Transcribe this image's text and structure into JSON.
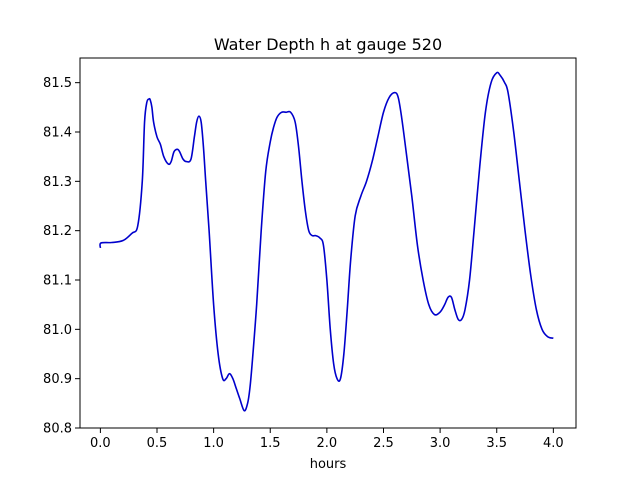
{
  "chart_data": {
    "type": "line",
    "title": "Water Depth h at gauge 520",
    "xlabel": "hours",
    "ylabel": "",
    "xlim": [
      -0.18,
      4.2
    ],
    "ylim": [
      80.8,
      81.55
    ],
    "xticks": [
      0.0,
      0.5,
      1.0,
      1.5,
      2.0,
      2.5,
      3.0,
      3.5,
      4.0
    ],
    "xtick_labels": [
      "0.0",
      "0.5",
      "1.0",
      "1.5",
      "2.0",
      "2.5",
      "3.0",
      "3.5",
      "4.0"
    ],
    "yticks": [
      80.8,
      80.9,
      81.0,
      81.1,
      81.2,
      81.3,
      81.4,
      81.5
    ],
    "ytick_labels": [
      "80.8",
      "80.9",
      "81.0",
      "81.1",
      "81.2",
      "81.3",
      "81.4",
      "81.5"
    ],
    "grid": false,
    "legend": "none",
    "series": [
      {
        "color": "#0000cc",
        "x": [
          0.0,
          0.005,
          0.1,
          0.2,
          0.28,
          0.33,
          0.37,
          0.39,
          0.41,
          0.43,
          0.44,
          0.455,
          0.47,
          0.5,
          0.53,
          0.56,
          0.6,
          0.625,
          0.65,
          0.68,
          0.7,
          0.73,
          0.76,
          0.8,
          0.83,
          0.85,
          0.87,
          0.89,
          0.91,
          0.93,
          0.96,
          1.0,
          1.04,
          1.08,
          1.11,
          1.14,
          1.17,
          1.2,
          1.23,
          1.27,
          1.3,
          1.32,
          1.34,
          1.38,
          1.42,
          1.46,
          1.5,
          1.53,
          1.56,
          1.6,
          1.64,
          1.68,
          1.72,
          1.75,
          1.78,
          1.81,
          1.84,
          1.87,
          1.9,
          1.94,
          1.97,
          2.0,
          2.03,
          2.06,
          2.09,
          2.12,
          2.15,
          2.18,
          2.21,
          2.25,
          2.3,
          2.35,
          2.4,
          2.45,
          2.5,
          2.55,
          2.6,
          2.63,
          2.66,
          2.7,
          2.75,
          2.8,
          2.85,
          2.9,
          2.95,
          3.0,
          3.04,
          3.07,
          3.1,
          3.13,
          3.16,
          3.19,
          3.22,
          3.26,
          3.3,
          3.35,
          3.4,
          3.45,
          3.5,
          3.53,
          3.57,
          3.6,
          3.65,
          3.7,
          3.75,
          3.8,
          3.85,
          3.9,
          3.95,
          4.0
        ],
        "y": [
          81.165,
          81.175,
          81.176,
          81.18,
          81.195,
          81.21,
          81.3,
          81.42,
          81.46,
          81.467,
          81.465,
          81.45,
          81.42,
          81.39,
          81.375,
          81.35,
          81.335,
          81.34,
          81.36,
          81.365,
          81.36,
          81.345,
          81.34,
          81.345,
          81.39,
          81.42,
          81.432,
          81.42,
          81.37,
          81.3,
          81.2,
          81.05,
          80.95,
          80.9,
          80.9,
          80.91,
          80.9,
          80.88,
          80.86,
          80.835,
          80.85,
          80.88,
          80.93,
          81.05,
          81.2,
          81.32,
          81.38,
          81.41,
          81.43,
          81.44,
          81.44,
          81.44,
          81.42,
          81.37,
          81.3,
          81.24,
          81.2,
          81.19,
          81.19,
          81.185,
          81.17,
          81.1,
          81.0,
          80.93,
          80.9,
          80.9,
          80.95,
          81.04,
          81.14,
          81.23,
          81.27,
          81.3,
          81.34,
          81.39,
          81.44,
          81.47,
          81.48,
          81.47,
          81.43,
          81.36,
          81.27,
          81.17,
          81.1,
          81.05,
          81.03,
          81.035,
          81.05,
          81.065,
          81.065,
          81.04,
          81.02,
          81.02,
          81.04,
          81.1,
          81.2,
          81.33,
          81.44,
          81.5,
          81.52,
          81.515,
          81.5,
          81.48,
          81.4,
          81.3,
          81.2,
          81.11,
          81.04,
          81.0,
          80.985,
          80.982
        ]
      }
    ]
  }
}
